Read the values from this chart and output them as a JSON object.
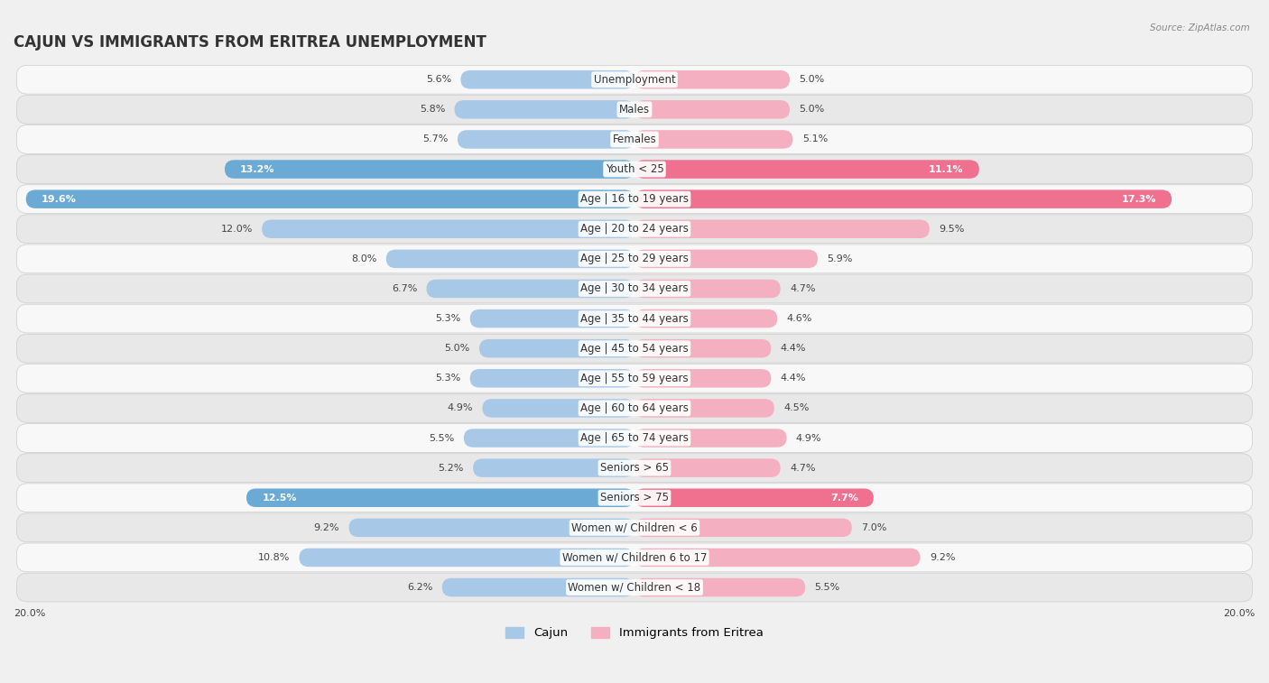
{
  "title": "CAJUN VS IMMIGRANTS FROM ERITREA UNEMPLOYMENT",
  "source": "Source: ZipAtlas.com",
  "categories": [
    "Unemployment",
    "Males",
    "Females",
    "Youth < 25",
    "Age | 16 to 19 years",
    "Age | 20 to 24 years",
    "Age | 25 to 29 years",
    "Age | 30 to 34 years",
    "Age | 35 to 44 years",
    "Age | 45 to 54 years",
    "Age | 55 to 59 years",
    "Age | 60 to 64 years",
    "Age | 65 to 74 years",
    "Seniors > 65",
    "Seniors > 75",
    "Women w/ Children < 6",
    "Women w/ Children 6 to 17",
    "Women w/ Children < 18"
  ],
  "cajun_values": [
    5.6,
    5.8,
    5.7,
    13.2,
    19.6,
    12.0,
    8.0,
    6.7,
    5.3,
    5.0,
    5.3,
    4.9,
    5.5,
    5.2,
    12.5,
    9.2,
    10.8,
    6.2
  ],
  "eritrea_values": [
    5.0,
    5.0,
    5.1,
    11.1,
    17.3,
    9.5,
    5.9,
    4.7,
    4.6,
    4.4,
    4.4,
    4.5,
    4.9,
    4.7,
    7.7,
    7.0,
    9.2,
    5.5
  ],
  "cajun_color_normal": "#a8c8e8",
  "cajun_color_highlight": "#6aaad4",
  "eritrea_color_normal": "#f4afc0",
  "eritrea_color_highlight": "#f07090",
  "highlight_rows": [
    3,
    4,
    14
  ],
  "xlim": 20.0,
  "bg_color": "#f0f0f0",
  "row_bg_even": "#f8f8f8",
  "row_bg_odd": "#e8e8e8",
  "legend_cajun": "Cajun",
  "legend_eritrea": "Immigrants from Eritrea",
  "title_fontsize": 12,
  "label_fontsize": 8.5,
  "value_fontsize": 8,
  "source_fontsize": 7.5
}
